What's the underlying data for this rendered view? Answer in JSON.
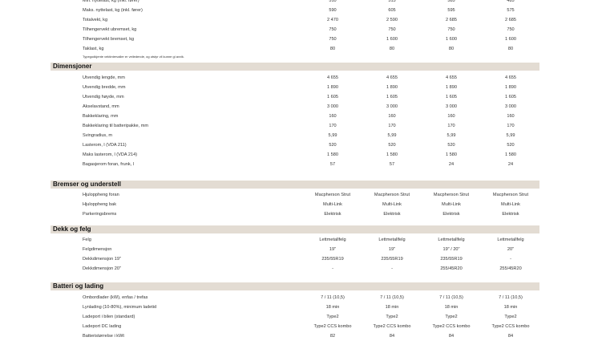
{
  "sections": [
    {
      "title": "",
      "rows": [
        {
          "label": "Min. nyttelast, kg (inkl. fører)",
          "values": [
            "510",
            "515",
            "585",
            "485"
          ]
        },
        {
          "label": "Maks. nyttelast, kg (inkl. fører)",
          "values": [
            "590",
            "605",
            "595",
            "575"
          ]
        },
        {
          "label": "Totalvekt, kg",
          "values": [
            "2 470",
            "2 590",
            "2 685",
            "2 685"
          ]
        },
        {
          "label": "Tilhengervekt ubremset, kg",
          "values": [
            "750",
            "750",
            "750",
            "750"
          ]
        },
        {
          "label": "Tilhengervekt bremset, kg",
          "values": [
            "750",
            "1 600",
            "1 600",
            "1 600"
          ]
        },
        {
          "label": "Taklast, kg",
          "values": [
            "80",
            "80",
            "80",
            "80"
          ]
        }
      ],
      "note": "Typegodkjente vektintervaller er veiledende, og utstyr vil kunne gi avvik."
    },
    {
      "title": "Dimensjoner",
      "rows": [
        {
          "label": "Utvendig lengde, mm",
          "values": [
            "4 655",
            "4 655",
            "4 655",
            "4 655"
          ]
        },
        {
          "label": "Utvendig bredde, mm",
          "values": [
            "1 890",
            "1 890",
            "1 890",
            "1 890"
          ]
        },
        {
          "label": "Utvendig høyde, mm",
          "values": [
            "1 605",
            "1 605",
            "1 605",
            "1 605"
          ]
        },
        {
          "label": "Akselavstand, mm",
          "values": [
            "3 000",
            "3 000",
            "3 000",
            "3 000"
          ]
        },
        {
          "label": "Bakkeklaring, mm",
          "values": [
            "160",
            "160",
            "160",
            "160"
          ]
        },
        {
          "label": "Bakkeklaring til batteripakke, mm",
          "values": [
            "170",
            "170",
            "170",
            "170"
          ]
        },
        {
          "label": "Svingradius, m",
          "values": [
            "5,99",
            "5,99",
            "5,99",
            "5,99"
          ]
        },
        {
          "label": "Lasterom, l (VDA 211)",
          "values": [
            "520",
            "520",
            "520",
            "520"
          ]
        },
        {
          "label": "Maks lasterom, l (VDA 214)",
          "values": [
            "1 580",
            "1 580",
            "1 580",
            "1 580"
          ]
        },
        {
          "label": "Bagasjerom foran, frunk, l",
          "values": [
            "57",
            "57",
            "24",
            "24"
          ]
        }
      ]
    },
    {
      "title": "Bremser og understell",
      "rows": [
        {
          "label": "Hjuloppheng foran",
          "values": [
            "Macpherson Strut",
            "Macpherson Strut",
            "Macpherson Strut",
            "Macpherson Strut"
          ]
        },
        {
          "label": "Hjuloppheng bak",
          "values": [
            "Multi-Link",
            "Multi-Link",
            "Multi-Link",
            "Multi-Link"
          ]
        },
        {
          "label": "Parkeringsbrems",
          "values": [
            "Elektrisk",
            "Elektrisk",
            "Elektrisk",
            "Elektrisk"
          ]
        }
      ]
    },
    {
      "title": "Dekk og felg",
      "rows": [
        {
          "label": "Felg",
          "values": [
            "Lettmetallfelg",
            "Lettmetallfelg",
            "Lettmetallfelg",
            "Lettmetallfelg"
          ]
        },
        {
          "label": "Felgdimensjon",
          "values": [
            "19\"",
            "19\"",
            "19\" / 20\"",
            "20\""
          ]
        },
        {
          "label": "Dekkdimensjon 19\"",
          "values": [
            "235/55R19",
            "235/55R19",
            "235/55R19",
            "-"
          ]
        },
        {
          "label": "Dekkdimensjon 20\"",
          "values": [
            "-",
            "-",
            "255/45R20",
            "255/45R20"
          ]
        }
      ]
    },
    {
      "title": "Batteri og lading",
      "rows": [
        {
          "label": "Ombordlader (kW), enfas / trefas",
          "values": [
            "7 / 11 (10,5)",
            "7 / 11 (10,5)",
            "7 / 11 (10,5)",
            "7 / 11 (10,5)"
          ]
        },
        {
          "label": "Lynlading (10-80%), minimum ladetid",
          "values": [
            "18 min",
            "18 min",
            "18 min",
            "18 min"
          ]
        },
        {
          "label": "Ladeport i bilen (standard)",
          "values": [
            "Type2",
            "Type2",
            "Type2",
            "Type2"
          ]
        },
        {
          "label": "Ladeport DC lading",
          "values": [
            "Type2 CCS kombo",
            "Type2 CCS kombo",
            "Type2 CCS kombo",
            "Type2 CCS kombo"
          ]
        },
        {
          "label": "Batteristørrelse i kWt",
          "values": [
            "82",
            "84",
            "84",
            "84"
          ]
        }
      ]
    }
  ]
}
